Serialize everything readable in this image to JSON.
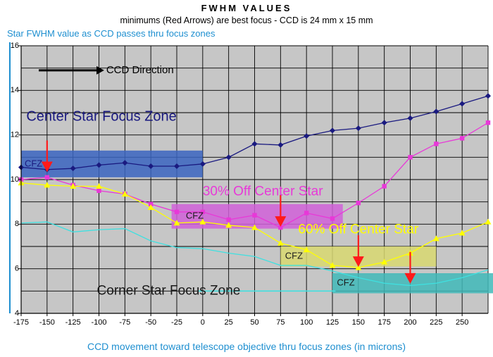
{
  "chart_data": {
    "type": "line",
    "title": "FWHM VALUES",
    "subtitle": "minimums (Red Arrows) are best focus - CCD is 24 mm x 15 mm",
    "ylabel": "Star FWHM value as CCD passes thru  focus zones",
    "xlabel": "CCD movement toward telescope objective thru focus zones (in microns)",
    "xlim": [
      -175,
      275
    ],
    "ylim": [
      4,
      16
    ],
    "x_ticks": [
      -175,
      -150,
      -125,
      -100,
      -75,
      -50,
      -25,
      0,
      25,
      50,
      75,
      100,
      125,
      150,
      175,
      200,
      225,
      250
    ],
    "y_ticks": [
      4,
      6,
      8,
      10,
      12,
      14,
      16
    ],
    "grid": true,
    "series": [
      {
        "color": "#1a1a80",
        "marker": "diamond",
        "x": [
          -175,
          -150,
          -125,
          -100,
          -75,
          -50,
          -25,
          0,
          25,
          50,
          75,
          100,
          125,
          150,
          175,
          200,
          225,
          250,
          275
        ],
        "y": [
          10.55,
          10.45,
          10.5,
          10.65,
          10.75,
          10.6,
          10.6,
          10.7,
          11.0,
          11.6,
          11.55,
          11.95,
          12.2,
          12.3,
          12.55,
          12.75,
          13.05,
          13.4,
          13.75
        ]
      },
      {
        "color": "#e838d8",
        "marker": "square",
        "x": [
          -175,
          -150,
          -125,
          -100,
          -75,
          -50,
          -25,
          0,
          25,
          50,
          75,
          100,
          125,
          150,
          175,
          200,
          225,
          250,
          275
        ],
        "y": [
          10.0,
          10.1,
          9.75,
          9.5,
          9.35,
          8.9,
          8.55,
          8.55,
          8.2,
          8.4,
          7.85,
          8.5,
          8.25,
          8.95,
          9.7,
          11.0,
          11.6,
          11.85,
          12.55
        ]
      },
      {
        "color": "#ffff00",
        "marker": "triangle",
        "x": [
          -175,
          -150,
          -125,
          -100,
          -75,
          -50,
          -25,
          0,
          25,
          50,
          75,
          100,
          125,
          150,
          175,
          200,
          225,
          250,
          275
        ],
        "y": [
          9.85,
          9.75,
          9.7,
          9.7,
          9.35,
          8.75,
          8.05,
          8.1,
          7.95,
          7.85,
          7.15,
          6.85,
          6.15,
          6.05,
          6.3,
          6.7,
          7.35,
          7.6,
          8.1
        ]
      },
      {
        "color": "#3fe0e0",
        "marker": "none",
        "x": [
          -175,
          -150,
          -125,
          -100,
          -75,
          -50,
          -25,
          0,
          25,
          50,
          75,
          100,
          125,
          150,
          175,
          200,
          225,
          250,
          275
        ],
        "y": [
          8.05,
          8.1,
          7.65,
          7.75,
          7.8,
          7.25,
          6.95,
          6.9,
          6.7,
          6.55,
          6.15,
          6.15,
          5.9,
          5.6,
          5.35,
          5.25,
          5.35,
          5.6,
          5.95
        ]
      }
    ],
    "zones": [
      {
        "label": "CFZ",
        "x0": -175,
        "x1": 0,
        "y0": 10.1,
        "y1": 11.3,
        "color": "#3a64c0"
      },
      {
        "label": "CFZ",
        "x0": -30,
        "x1": 135,
        "y0": 7.8,
        "y1": 8.9,
        "color": "#d060d8"
      },
      {
        "label": "CFZ",
        "x0": 75,
        "x1": 225,
        "y0": 6.1,
        "y1": 7.0,
        "color": "#d8d870"
      },
      {
        "label": "CFZ",
        "x0": 125,
        "x1": 280,
        "y0": 4.9,
        "y1": 5.8,
        "color": "#40b8b8"
      }
    ],
    "best_focus_arrows": [
      {
        "x": -150,
        "y": 10.3
      },
      {
        "x": 75,
        "y": 7.85
      },
      {
        "x": 150,
        "y": 6.05
      },
      {
        "x": 200,
        "y": 5.3
      }
    ],
    "annotations": [
      {
        "text": "CCD Direction",
        "x": -93,
        "y": 14.9
      },
      {
        "text": "Center Star Focus Zone",
        "x": -170,
        "y": 12.8
      },
      {
        "text": "30% Off Center Star",
        "x": 0,
        "y": 9.45
      },
      {
        "text": "60% Off Center Star",
        "x": 92,
        "y": 7.75
      },
      {
        "text": "Corner Star Focus Zone",
        "x": -102,
        "y": 5.0
      }
    ]
  }
}
